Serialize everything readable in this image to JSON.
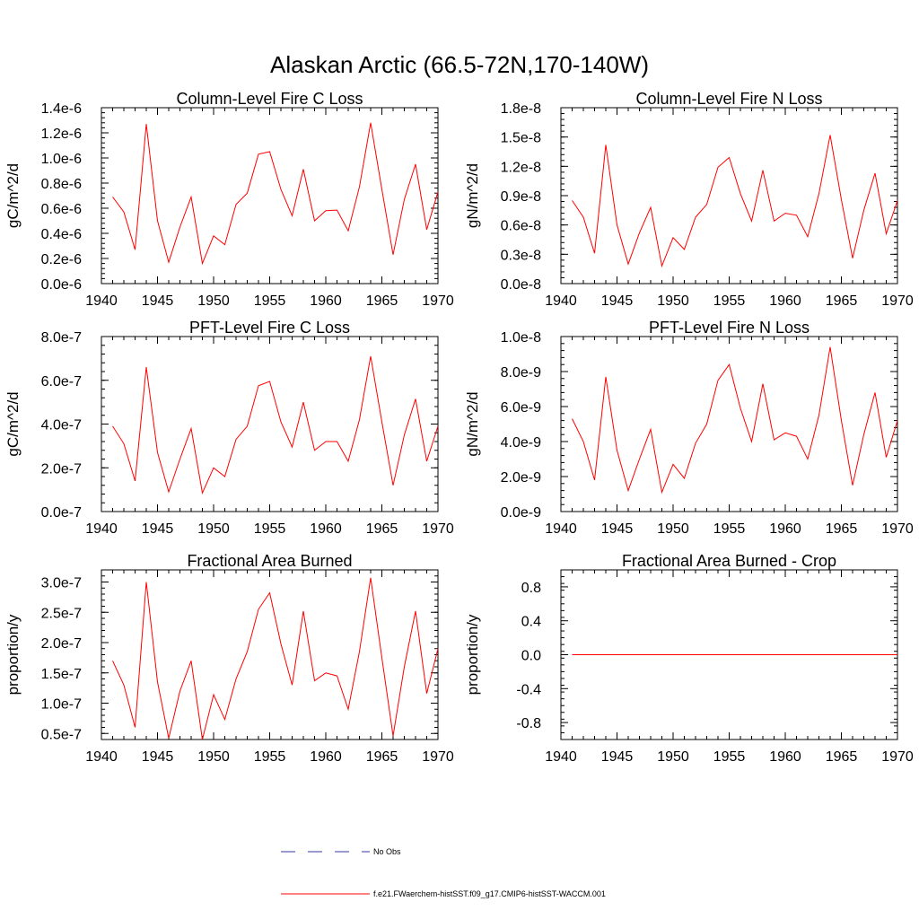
{
  "figure": {
    "title": "Alaskan Arctic (66.5-72N,170-140W)"
  },
  "colors": {
    "model": "#ff0000",
    "obs": "#3333aa",
    "axis": "#000000"
  },
  "legend": {
    "obs_label": "No Obs",
    "model_label": "f.e21.FWaerchem-histSST.f09_g17.CMIP6-histSST-WACCM.001"
  },
  "chart_data": [
    {
      "id": "col-c",
      "type": "line",
      "title": "Column-Level Fire C Loss",
      "ylabel": "gC/m^2/d",
      "xlim": [
        1940,
        1970
      ],
      "ylim": [
        0.0,
        1.4e-06
      ],
      "xticks": [
        1940,
        1945,
        1950,
        1955,
        1960,
        1965,
        1970
      ],
      "xtick_labels": [
        "1940",
        "1945",
        "1950",
        "1955",
        "1960",
        "1965",
        "1970"
      ],
      "yticks": [
        0,
        2e-07,
        4e-07,
        6e-07,
        8e-07,
        1e-06,
        1.2e-06,
        1.4e-06
      ],
      "ytick_labels": [
        "0.0e-6",
        "0.2e-6",
        "0.4e-6",
        "0.6e-6",
        "0.8e-6",
        "1.0e-6",
        "1.2e-6",
        "1.4e-6"
      ],
      "x": [
        1941,
        1942,
        1943,
        1944,
        1945,
        1946,
        1947,
        1948,
        1949,
        1950,
        1951,
        1952,
        1953,
        1954,
        1955,
        1956,
        1957,
        1958,
        1959,
        1960,
        1961,
        1962,
        1963,
        1964,
        1965,
        1966,
        1967,
        1968,
        1969,
        1970
      ],
      "series": [
        {
          "values": [
            6.9e-07,
            5.7e-07,
            2.7e-07,
            1.27e-06,
            5e-07,
            1.7e-07,
            4.5e-07,
            6.9e-07,
            1.6e-07,
            3.8e-07,
            3.1e-07,
            6.3e-07,
            7.2e-07,
            1.03e-06,
            1.05e-06,
            7.5e-07,
            5.4e-07,
            9.1e-07,
            5e-07,
            5.8e-07,
            5.85e-07,
            4.2e-07,
            7.7e-07,
            1.28e-06,
            7.5e-07,
            2.3e-07,
            6.7e-07,
            9.5e-07,
            4.3e-07,
            7.3e-07
          ]
        }
      ]
    },
    {
      "id": "col-n",
      "type": "line",
      "title": "Column-Level Fire N Loss",
      "ylabel": "gN/m^2/d",
      "xlim": [
        1940,
        1970
      ],
      "ylim": [
        0.0,
        1.8e-08
      ],
      "xticks": [
        1940,
        1945,
        1950,
        1955,
        1960,
        1965,
        1970
      ],
      "xtick_labels": [
        "1940",
        "1945",
        "1950",
        "1955",
        "1960",
        "1965",
        "1970"
      ],
      "yticks": [
        0,
        3e-09,
        6e-09,
        9e-09,
        1.2e-08,
        1.5e-08,
        1.8e-08
      ],
      "ytick_labels": [
        "0.0e-8",
        "0.3e-8",
        "0.6e-8",
        "0.9e-8",
        "1.2e-8",
        "1.5e-8",
        "1.8e-8"
      ],
      "x": [
        1941,
        1942,
        1943,
        1944,
        1945,
        1946,
        1947,
        1948,
        1949,
        1950,
        1951,
        1952,
        1953,
        1954,
        1955,
        1956,
        1957,
        1958,
        1959,
        1960,
        1961,
        1962,
        1963,
        1964,
        1965,
        1966,
        1967,
        1968,
        1969,
        1970
      ],
      "series": [
        {
          "values": [
            8.5e-09,
            6.8e-09,
            3.1e-09,
            1.42e-08,
            6e-09,
            2e-09,
            5.2e-09,
            7.8e-09,
            1.8e-09,
            4.7e-09,
            3.5e-09,
            6.8e-09,
            8.1e-09,
            1.19e-08,
            1.29e-08,
            9.2e-09,
            6.4e-09,
            1.16e-08,
            6.4e-09,
            7.2e-09,
            7e-09,
            4.8e-09,
            9.2e-09,
            1.52e-08,
            8.6e-09,
            2.6e-09,
            7.5e-09,
            1.13e-08,
            5.1e-09,
            8.5e-09
          ]
        }
      ]
    },
    {
      "id": "pft-c",
      "type": "line",
      "title": "PFT-Level Fire C Loss",
      "ylabel": "gC/m^2/d",
      "xlim": [
        1940,
        1970
      ],
      "ylim": [
        0.0,
        8e-07
      ],
      "xticks": [
        1940,
        1945,
        1950,
        1955,
        1960,
        1965,
        1970
      ],
      "xtick_labels": [
        "1940",
        "1945",
        "1950",
        "1955",
        "1960",
        "1965",
        "1970"
      ],
      "yticks": [
        0,
        2e-07,
        4e-07,
        6e-07,
        8e-07
      ],
      "ytick_labels": [
        "0.0e-7",
        "2.0e-7",
        "4.0e-7",
        "6.0e-7",
        "8.0e-7"
      ],
      "x": [
        1941,
        1942,
        1943,
        1944,
        1945,
        1946,
        1947,
        1948,
        1949,
        1950,
        1951,
        1952,
        1953,
        1954,
        1955,
        1956,
        1957,
        1958,
        1959,
        1960,
        1961,
        1962,
        1963,
        1964,
        1965,
        1966,
        1967,
        1968,
        1969,
        1970
      ],
      "series": [
        {
          "values": [
            3.9e-07,
            3.1e-07,
            1.4e-07,
            6.6e-07,
            2.7e-07,
            9e-08,
            2.4e-07,
            3.8e-07,
            8.5e-08,
            2e-07,
            1.6e-07,
            3.3e-07,
            3.9e-07,
            5.75e-07,
            5.95e-07,
            4.1e-07,
            2.95e-07,
            5e-07,
            2.8e-07,
            3.2e-07,
            3.2e-07,
            2.3e-07,
            4.2e-07,
            7.1e-07,
            4.1e-07,
            1.2e-07,
            3.5e-07,
            5.15e-07,
            2.3e-07,
            3.9e-07
          ]
        }
      ]
    },
    {
      "id": "pft-n",
      "type": "line",
      "title": "PFT-Level Fire N Loss",
      "ylabel": "gN/m^2/d",
      "xlim": [
        1940,
        1970
      ],
      "ylim": [
        0.0,
        1e-08
      ],
      "xticks": [
        1940,
        1945,
        1950,
        1955,
        1960,
        1965,
        1970
      ],
      "xtick_labels": [
        "1940",
        "1945",
        "1950",
        "1955",
        "1960",
        "1965",
        "1970"
      ],
      "yticks": [
        0,
        2e-09,
        4e-09,
        6e-09,
        8e-09,
        1e-08
      ],
      "ytick_labels": [
        "0.0e-9",
        "2.0e-9",
        "4.0e-9",
        "6.0e-9",
        "8.0e-9",
        "1.0e-8"
      ],
      "x": [
        1941,
        1942,
        1943,
        1944,
        1945,
        1946,
        1947,
        1948,
        1949,
        1950,
        1951,
        1952,
        1953,
        1954,
        1955,
        1956,
        1957,
        1958,
        1959,
        1960,
        1961,
        1962,
        1963,
        1964,
        1965,
        1966,
        1967,
        1968,
        1969,
        1970
      ],
      "series": [
        {
          "values": [
            5.3e-09,
            4e-09,
            1.8e-09,
            7.7e-09,
            3.5e-09,
            1.2e-09,
            3e-09,
            4.7e-09,
            1.1e-09,
            2.7e-09,
            1.9e-09,
            3.9e-09,
            5e-09,
            7.5e-09,
            8.4e-09,
            5.9e-09,
            4e-09,
            7.3e-09,
            4.1e-09,
            4.5e-09,
            4.3e-09,
            3e-09,
            5.5e-09,
            9.4e-09,
            5.2e-09,
            1.5e-09,
            4.4e-09,
            6.8e-09,
            3.1e-09,
            5.2e-09
          ]
        }
      ]
    },
    {
      "id": "fab",
      "type": "line",
      "title": "Fractional Area Burned",
      "ylabel": "proportion/y",
      "xlim": [
        1940,
        1970
      ],
      "ylim": [
        4e-08,
        3.2e-07
      ],
      "xticks": [
        1940,
        1945,
        1950,
        1955,
        1960,
        1965,
        1970
      ],
      "xtick_labels": [
        "1940",
        "1945",
        "1950",
        "1955",
        "1960",
        "1965",
        "1970"
      ],
      "yticks": [
        5e-08,
        1e-07,
        1.5e-07,
        2e-07,
        2.5e-07,
        3e-07
      ],
      "ytick_labels": [
        "0.5e-7",
        "1.0e-7",
        "1.5e-7",
        "2.0e-7",
        "2.5e-7",
        "3.0e-7"
      ],
      "x": [
        1941,
        1942,
        1943,
        1944,
        1945,
        1946,
        1947,
        1948,
        1949,
        1950,
        1951,
        1952,
        1953,
        1954,
        1955,
        1956,
        1957,
        1958,
        1959,
        1960,
        1961,
        1962,
        1963,
        1964,
        1965,
        1966,
        1967,
        1968,
        1969,
        1970
      ],
      "series": [
        {
          "values": [
            1.7e-07,
            1.3e-07,
            6e-08,
            3e-07,
            1.35e-07,
            4.2e-08,
            1.2e-07,
            1.7e-07,
            4e-08,
            1.14e-07,
            7.3e-08,
            1.4e-07,
            1.85e-07,
            2.55e-07,
            2.82e-07,
            1.98e-07,
            1.3e-07,
            2.52e-07,
            1.37e-07,
            1.5e-07,
            1.45e-07,
            9e-08,
            1.85e-07,
            3.07e-07,
            1.75e-07,
            4.6e-08,
            1.6e-07,
            2.52e-07,
            1.16e-07,
            1.9e-07
          ]
        }
      ]
    },
    {
      "id": "fab-crop",
      "type": "line",
      "title": "Fractional Area Burned - Crop",
      "ylabel": "proportion/y",
      "xlim": [
        1940,
        1970
      ],
      "ylim": [
        -1.0,
        1.0
      ],
      "xticks": [
        1940,
        1945,
        1950,
        1955,
        1960,
        1965,
        1970
      ],
      "xtick_labels": [
        "1940",
        "1945",
        "1950",
        "1955",
        "1960",
        "1965",
        "1970"
      ],
      "yticks": [
        -0.8,
        -0.4,
        0.0,
        0.4,
        0.8
      ],
      "ytick_labels": [
        "-0.8",
        "-0.4",
        "0.0",
        "0.4",
        "0.8"
      ],
      "x": [
        1941,
        1942,
        1943,
        1944,
        1945,
        1946,
        1947,
        1948,
        1949,
        1950,
        1951,
        1952,
        1953,
        1954,
        1955,
        1956,
        1957,
        1958,
        1959,
        1960,
        1961,
        1962,
        1963,
        1964,
        1965,
        1966,
        1967,
        1968,
        1969,
        1970
      ],
      "series": [
        {
          "values": [
            0,
            0,
            0,
            0,
            0,
            0,
            0,
            0,
            0,
            0,
            0,
            0,
            0,
            0,
            0,
            0,
            0,
            0,
            0,
            0,
            0,
            0,
            0,
            0,
            0,
            0,
            0,
            0,
            0,
            0
          ]
        }
      ]
    }
  ]
}
